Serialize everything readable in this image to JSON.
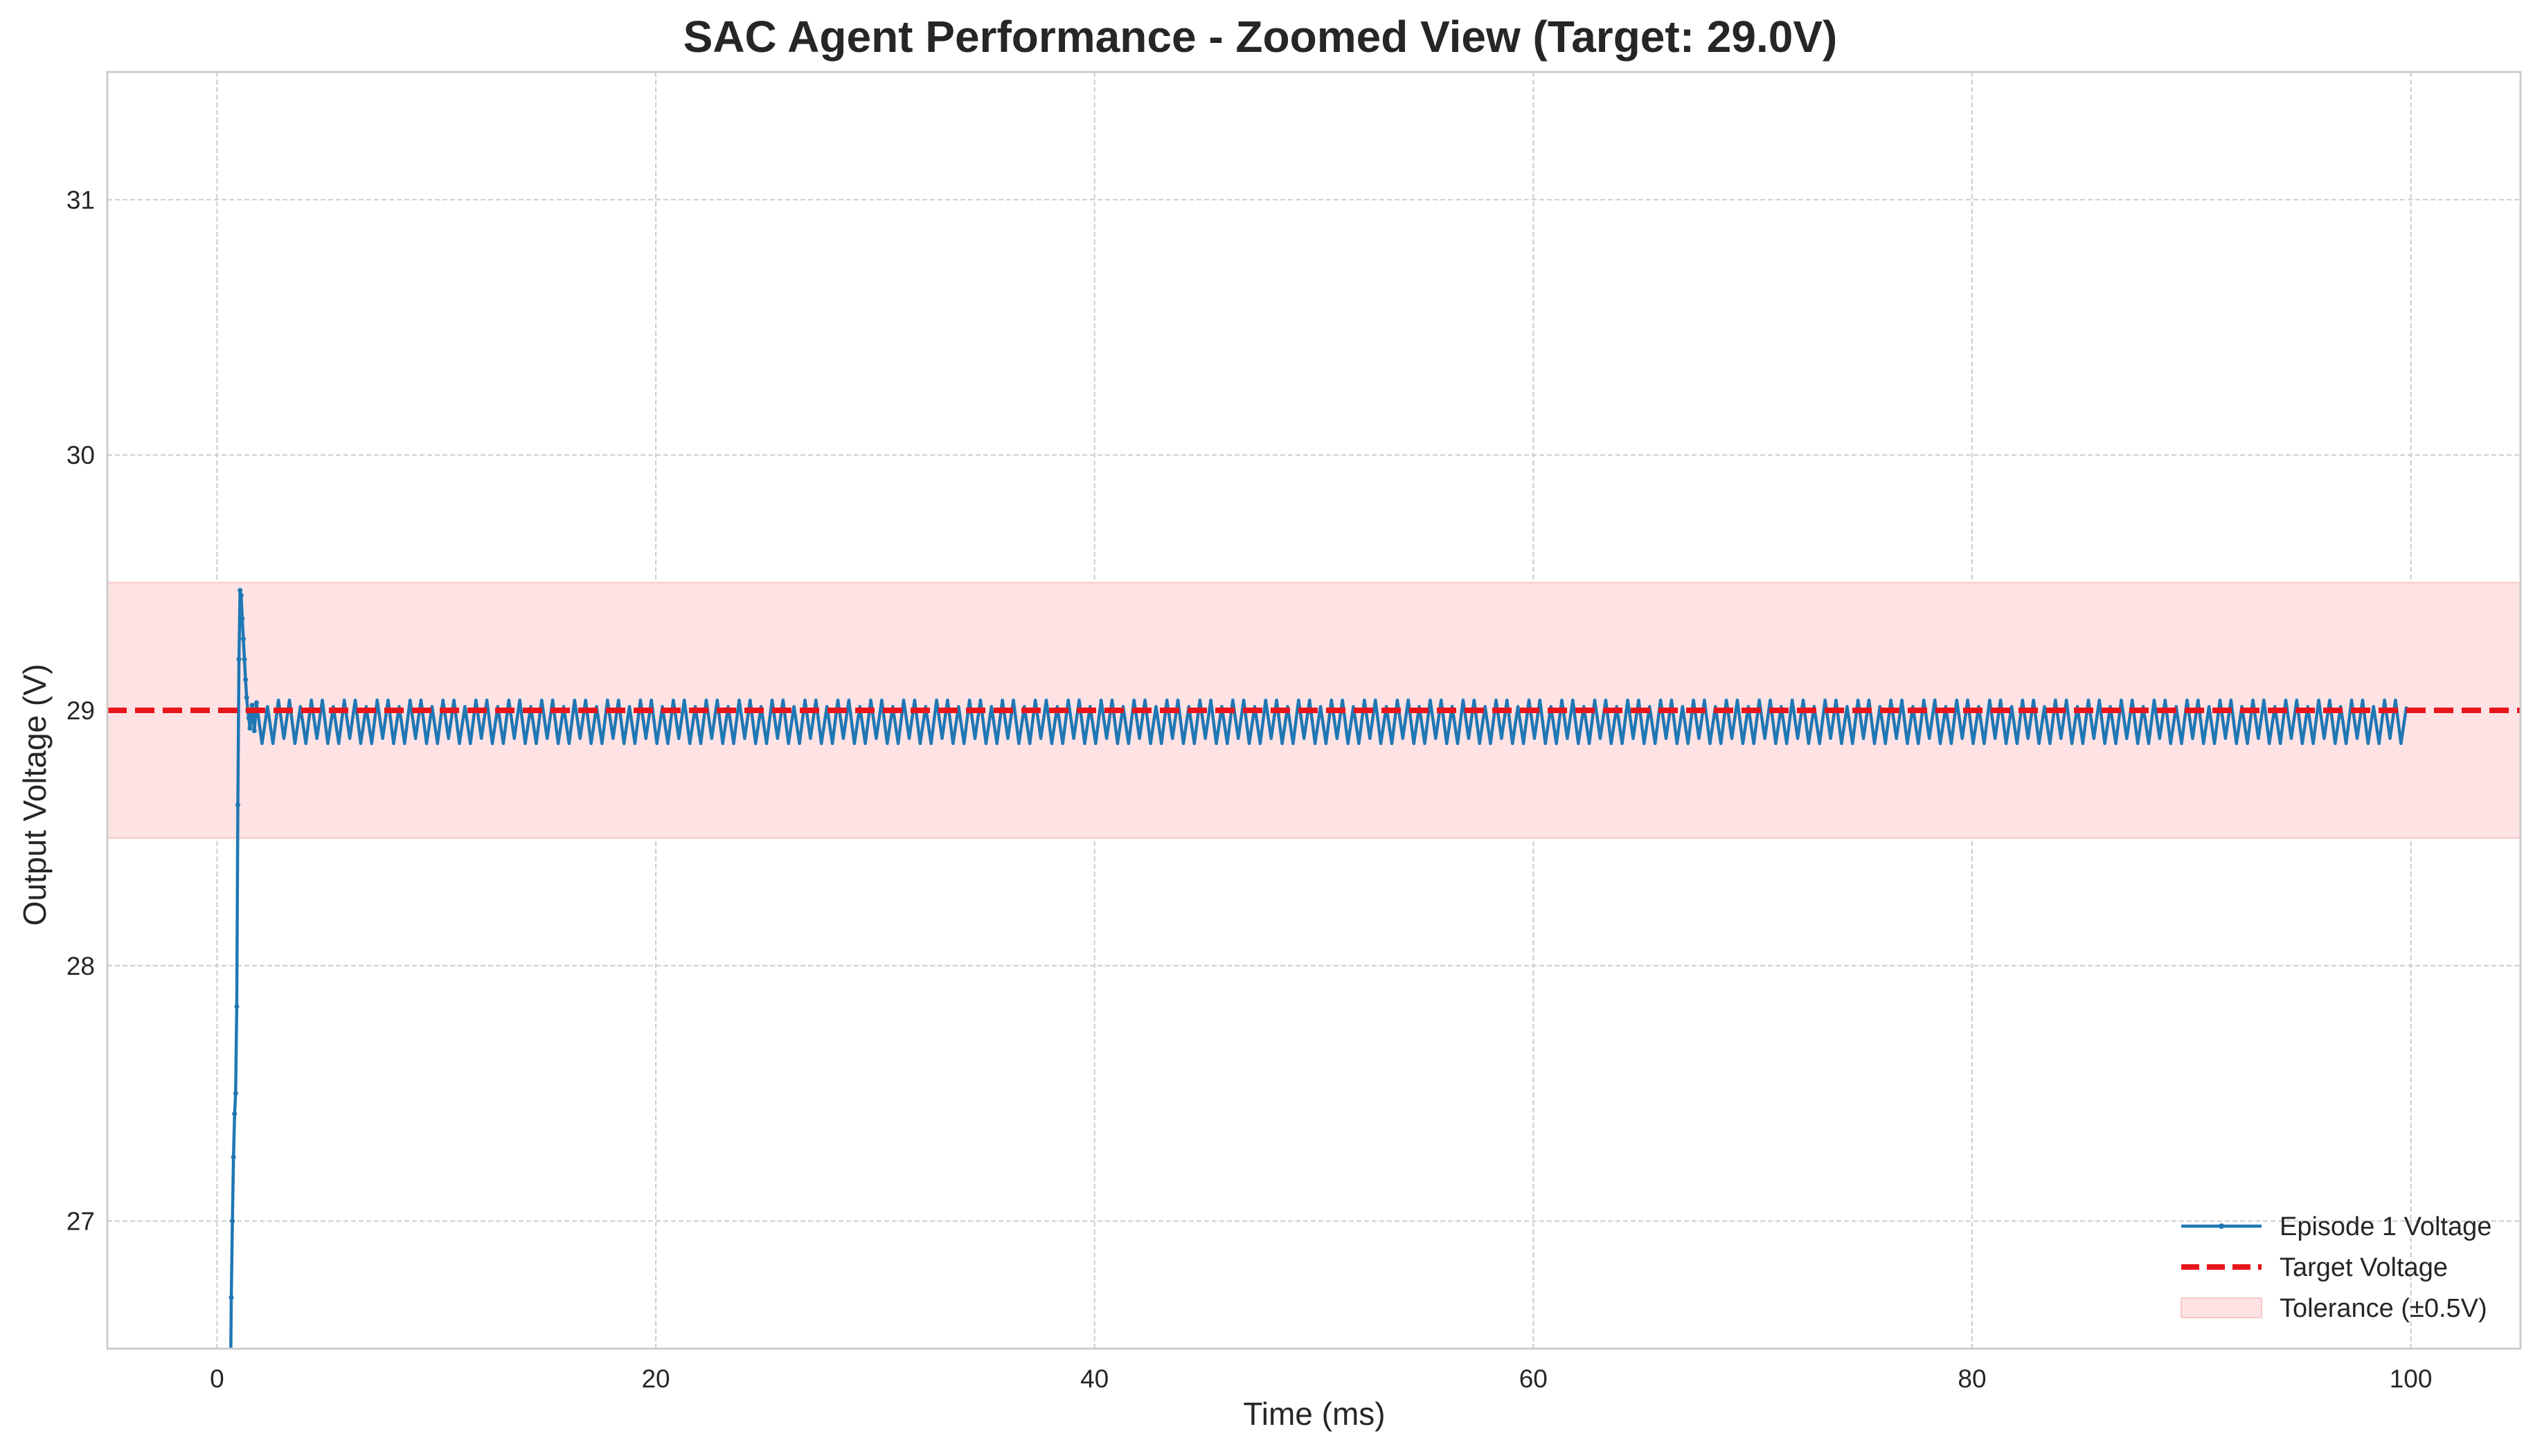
{
  "chart_data": {
    "type": "line",
    "title": "SAC Agent Performance - Zoomed View (Target: 29.0V)",
    "xlabel": "Time (ms)",
    "ylabel": "Output Voltage (V)",
    "xlim": [
      -5,
      105
    ],
    "ylim": [
      26.5,
      31.5
    ],
    "xticks": [
      0,
      20,
      40,
      60,
      80,
      100
    ],
    "yticks": [
      27,
      28,
      29,
      30,
      31
    ],
    "xtick_labels": [
      "0",
      "20",
      "40",
      "60",
      "80",
      "100"
    ],
    "ytick_labels": [
      "27",
      "28",
      "29",
      "30",
      "31"
    ],
    "grid": true,
    "legend_position": "lower-right",
    "series": [
      {
        "name": "Episode 1 Voltage",
        "color": "#1f77b4",
        "style": "solid line with small point markers",
        "x": [
          0.6,
          0.65,
          0.7,
          0.75,
          0.8,
          0.85,
          0.9,
          0.95,
          1.0,
          1.05,
          1.1,
          1.15,
          1.2,
          1.25,
          1.3,
          1.35,
          1.4,
          1.45,
          1.5,
          1.6,
          1.7,
          1.8
        ],
        "y": [
          26.2,
          26.7,
          27.0,
          27.25,
          27.42,
          27.5,
          27.84,
          28.63,
          29.2,
          29.47,
          29.45,
          29.36,
          29.28,
          29.2,
          29.12,
          29.05,
          29.0,
          28.97,
          28.93,
          29.02,
          28.92,
          29.03
        ],
        "steady_state": {
          "x_start": 1.8,
          "x_end": 100,
          "peak": 29.04,
          "trough": 28.87,
          "period_ms": 0.5
        }
      },
      {
        "name": "Target Voltage",
        "color": "#e8151b",
        "style": "dashed horizontal line",
        "y": 29.0
      },
      {
        "name": "Tolerance (±0.5V)",
        "color": "#ffe3e4",
        "style": "shaded band",
        "y_low": 28.5,
        "y_high": 29.5
      }
    ]
  }
}
